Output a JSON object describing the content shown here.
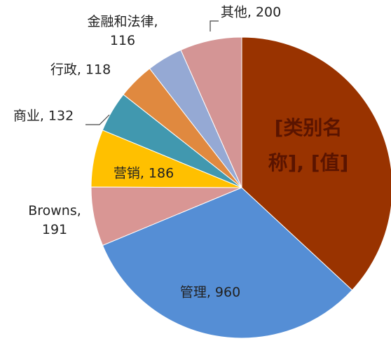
{
  "chart_data": {
    "type": "pie",
    "categories": [
      "[类别名称]",
      "管理",
      "Browns",
      "营销",
      "商业",
      "行政",
      "金融和法律",
      "其他"
    ],
    "values": [
      1113,
      960,
      191,
      186,
      132,
      118,
      116,
      200
    ],
    "value_labels": [
      "[类别名称], [值]",
      "管理, 960",
      "Browns, 191",
      "营销, 186",
      "商业, 132",
      "行政, 118",
      "金融和法律, 116",
      "其他, 200"
    ],
    "colors": [
      "#993300",
      "#558ed5",
      "#d99694",
      "#ffc000",
      "#4198af",
      "#e0893f",
      "#95a9d4",
      "#d49595"
    ]
  }
}
